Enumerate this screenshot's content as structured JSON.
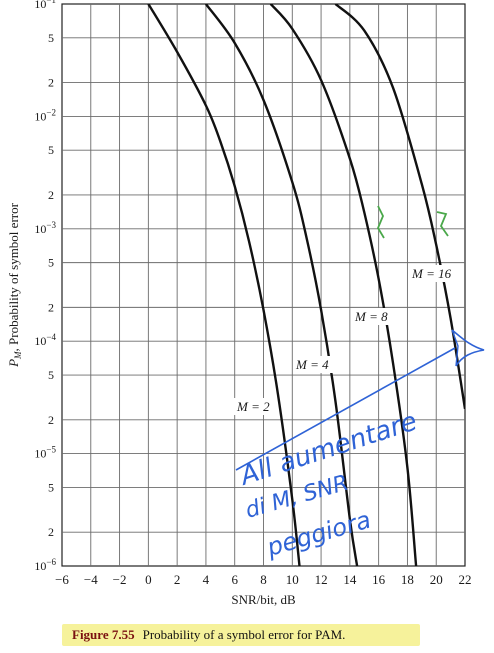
{
  "chart_data": {
    "type": "line",
    "xlabel": "SNR/bit, dB",
    "ylabel": "P_M, Probability of symbol error",
    "ylabel_main": "P",
    "ylabel_sub": "M",
    "ylabel_rest": ", Probability of symbol error",
    "xlim": [
      -6,
      22
    ],
    "ylim": [
      1e-06,
      0.1
    ],
    "yscale": "log",
    "grid": true,
    "x_ticks": [
      "−6",
      "−4",
      "−2",
      "0",
      "2",
      "4",
      "6",
      "8",
      "10",
      "12",
      "14",
      "16",
      "18",
      "20",
      "22"
    ],
    "y_ticks": [
      {
        "value": 0.1,
        "base": "10",
        "exp": "−1"
      },
      {
        "value": 0.05,
        "label": "5"
      },
      {
        "value": 0.02,
        "label": "2"
      },
      {
        "value": 0.01,
        "base": "10",
        "exp": "−2"
      },
      {
        "value": 0.005,
        "label": "5"
      },
      {
        "value": 0.002,
        "label": "2"
      },
      {
        "value": 0.001,
        "base": "10",
        "exp": "−3"
      },
      {
        "value": 0.0005,
        "label": "5"
      },
      {
        "value": 0.0002,
        "label": "2"
      },
      {
        "value": 0.0001,
        "base": "10",
        "exp": "−4"
      },
      {
        "value": 5e-05,
        "label": "5"
      },
      {
        "value": 2e-05,
        "label": "2"
      },
      {
        "value": 1e-05,
        "base": "10",
        "exp": "−5"
      },
      {
        "value": 5e-06,
        "label": "5"
      },
      {
        "value": 2e-06,
        "label": "2"
      },
      {
        "value": 1e-06,
        "base": "10",
        "exp": "−6"
      }
    ],
    "series": [
      {
        "name": "M = 2",
        "x": [
          0.0,
          2.0,
          4.0,
          5.0,
          6.0,
          7.0,
          8.0,
          9.0,
          10.0,
          10.5
        ],
        "y": [
          0.1,
          0.0375,
          0.0125,
          0.006,
          0.0024,
          0.00077,
          0.00019,
          3.4e-05,
          3.9e-06,
          1e-06
        ]
      },
      {
        "name": "M = 4",
        "x": [
          4.0,
          6.0,
          8.0,
          10.0,
          11.0,
          12.0,
          13.0,
          14.0,
          14.5
        ],
        "y": [
          0.1,
          0.045,
          0.014,
          0.0026,
          0.00082,
          0.00019,
          2.9e-05,
          2.6e-06,
          1e-06
        ]
      },
      {
        "name": "M = 8",
        "x": [
          8.5,
          10.0,
          12.0,
          14.0,
          15.0,
          16.0,
          17.0,
          18.0,
          18.6
        ],
        "y": [
          0.1,
          0.06,
          0.021,
          0.0042,
          0.0014,
          0.00036,
          6.4e-05,
          7.5e-06,
          1e-06
        ]
      },
      {
        "name": "M = 16",
        "x": [
          13.0,
          15.0,
          17.0,
          19.0,
          20.0,
          21.0,
          22.0
        ],
        "y": [
          0.1,
          0.058,
          0.018,
          0.0025,
          0.00072,
          0.00016,
          2.5e-05
        ]
      }
    ]
  },
  "handwriting": {
    "line1": "All aumentare",
    "line2": "di  M, SNR",
    "line3": "peggiora"
  },
  "caption": {
    "figure": "Figure 7.55",
    "text": "Probability of a symbol error for PAM."
  },
  "colors": {
    "curve": "#111111",
    "grid": "#6b6b6b",
    "annotation": "#2f63d6",
    "highlight": "#f6f29b"
  }
}
